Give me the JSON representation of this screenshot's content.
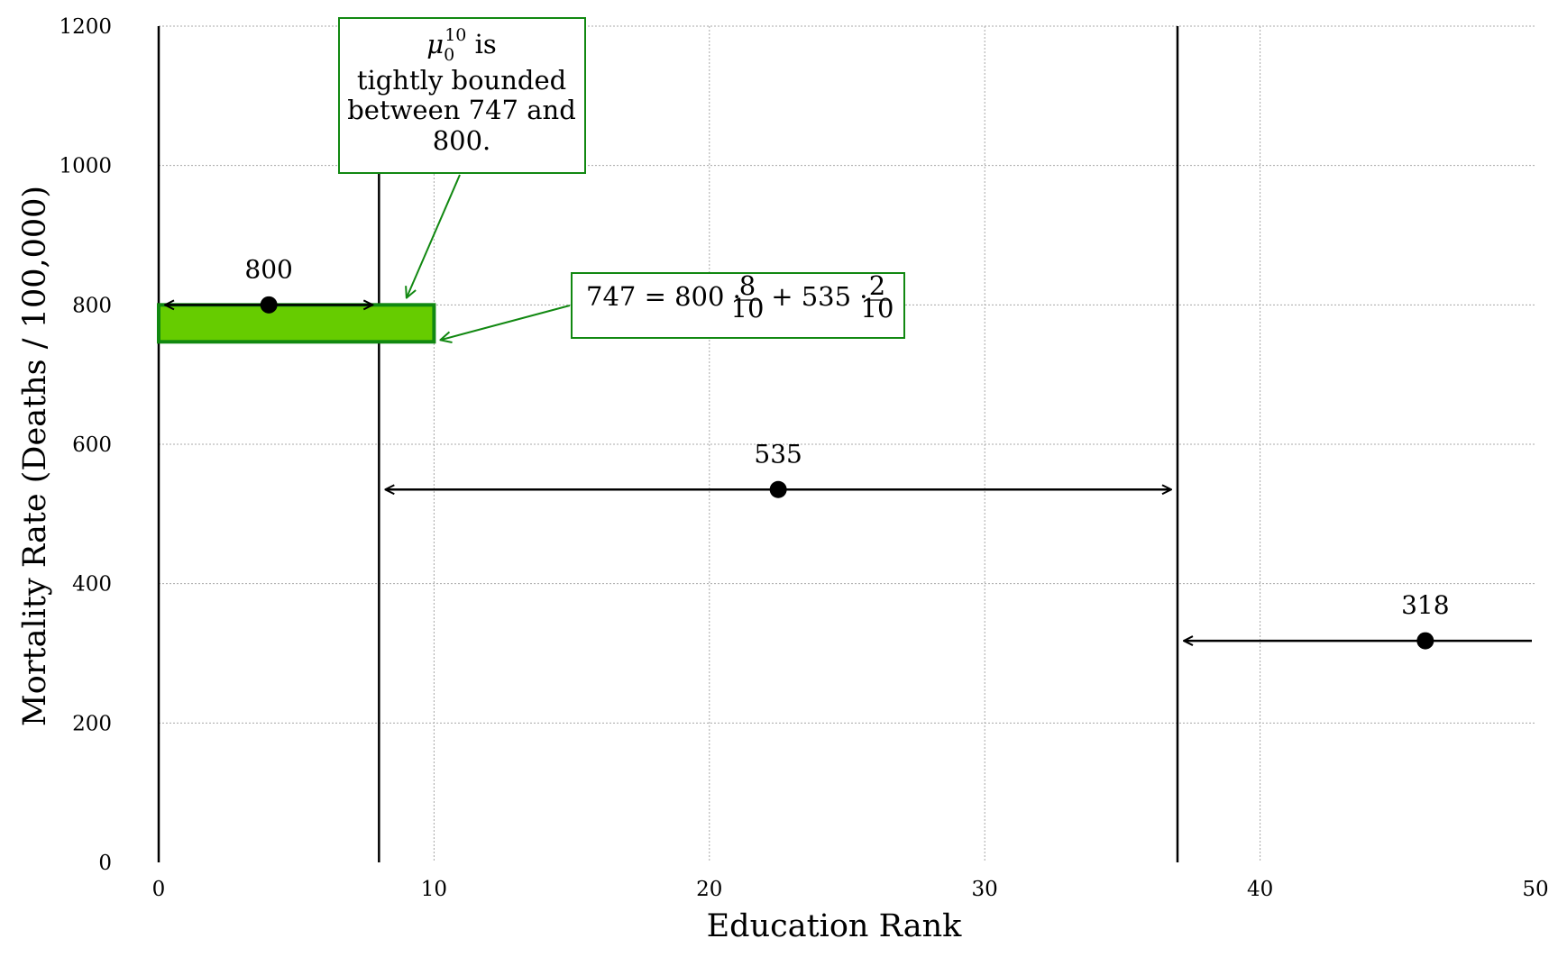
{
  "chart_data": {
    "type": "scatter",
    "xlabel": "Education Rank",
    "ylabel": "Mortality Rate (Deaths / 100,000)",
    "xlim": [
      0,
      50
    ],
    "ylim": [
      0,
      1200
    ],
    "xticks": [
      0,
      10,
      20,
      30,
      40,
      50
    ],
    "yticks": [
      0,
      200,
      400,
      600,
      800,
      1000,
      1200
    ],
    "grid": true,
    "boundaries": [
      0,
      8,
      37
    ],
    "groups": [
      {
        "x_start": 0,
        "x_end": 8,
        "x_mid": 4,
        "value": 800,
        "label": "800"
      },
      {
        "x_start": 8,
        "x_end": 37,
        "x_mid": 22.5,
        "value": 535,
        "label": "535"
      },
      {
        "x_start": 37,
        "x_end": 50,
        "x_mid": 46,
        "value": 318,
        "label": "318"
      }
    ],
    "highlight_region": {
      "x_start": 0,
      "x_end": 10,
      "y_low": 747,
      "y_high": 800,
      "color": "#66cc00",
      "border_color": "#118811"
    },
    "annotations": [
      {
        "id": "bound-note",
        "mu_symbol": "μ",
        "mu_sub": "0",
        "mu_sup": "10",
        "lines": [
          " is",
          "tightly bounded",
          "between 747 and",
          "800."
        ],
        "points_to": {
          "x": 9,
          "y": 810
        },
        "color": "#118811"
      },
      {
        "id": "formula-note",
        "parts": {
          "lhs": "747 = 800 · ",
          "frac1_num": "8",
          "frac1_den": "10",
          "mid": " + 535 · ",
          "frac2_num": "2",
          "frac2_den": "10"
        },
        "points_to": {
          "x": 10,
          "y": 747
        },
        "color": "#118811"
      }
    ]
  }
}
